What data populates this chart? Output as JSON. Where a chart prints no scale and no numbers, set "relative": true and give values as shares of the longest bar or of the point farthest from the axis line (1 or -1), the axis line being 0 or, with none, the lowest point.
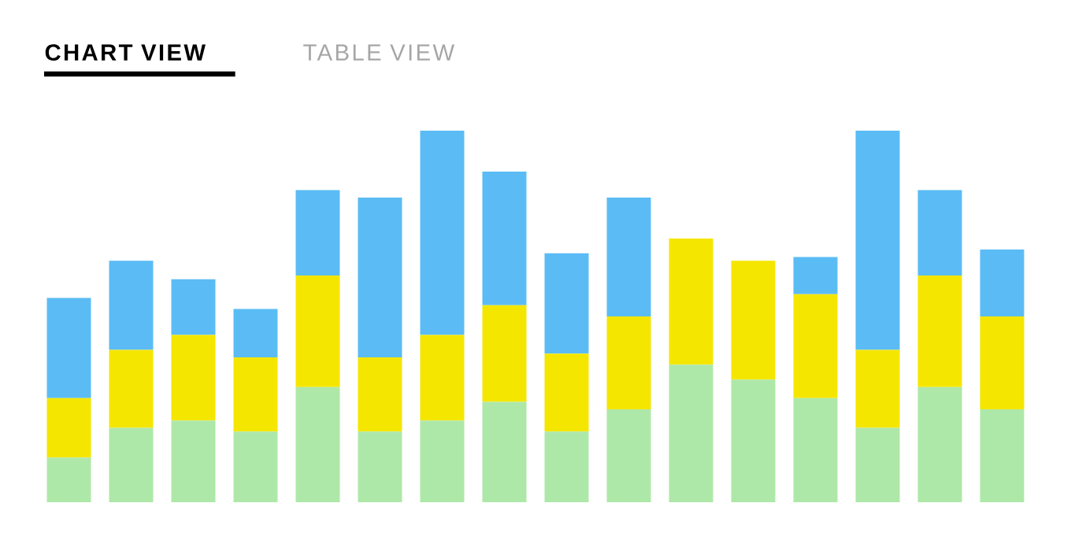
{
  "chart_data": {
    "type": "bar",
    "title": "CHART VIEW",
    "annotations": [
      "TABLE VIEW"
    ],
    "relative": true,
    "stacked": true,
    "categories": [
      null,
      null,
      null,
      null,
      null,
      null,
      null,
      null,
      null,
      null,
      null,
      null,
      null,
      null,
      null,
      null
    ],
    "series": [
      {
        "color": "#aee8a8",
        "values": [
          0.12,
          0.2,
          0.22,
          0.19,
          0.31,
          0.19,
          0.22,
          0.27,
          0.19,
          0.25,
          0.37,
          0.33,
          0.28,
          0.2,
          0.31,
          0.25
        ]
      },
      {
        "color": "#f5e600",
        "values": [
          0.16,
          0.21,
          0.23,
          0.2,
          0.3,
          0.2,
          0.23,
          0.26,
          0.21,
          0.25,
          0.34,
          0.32,
          0.28,
          0.21,
          0.3,
          0.25
        ]
      },
      {
        "color": "#5bbcf5",
        "values": [
          0.27,
          0.24,
          0.15,
          0.13,
          0.23,
          0.43,
          0.55,
          0.36,
          0.27,
          0.32,
          null,
          null,
          0.1,
          0.59,
          0.23,
          0.18
        ]
      }
    ]
  }
}
